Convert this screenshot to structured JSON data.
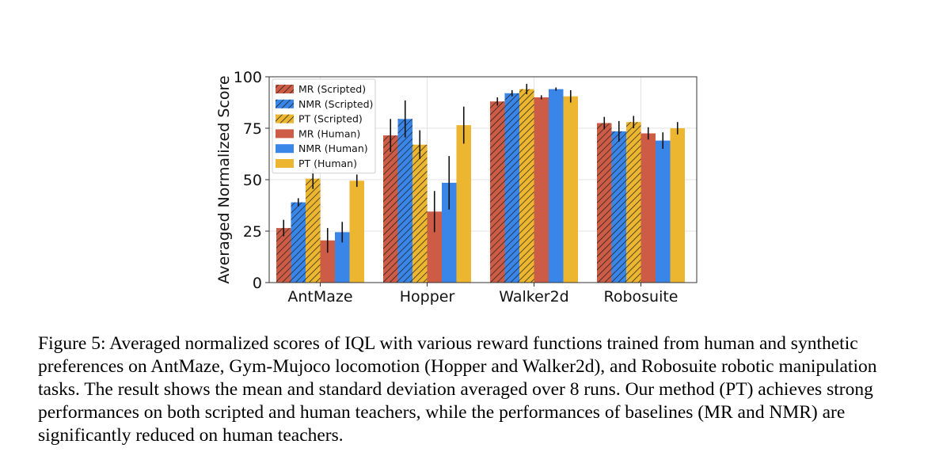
{
  "chart_data": {
    "type": "bar",
    "ylabel": "Averaged Normalized Score",
    "xlabel": "",
    "ylim": [
      0,
      100
    ],
    "yticks": [
      0,
      25,
      50,
      75,
      100
    ],
    "grid": true,
    "legend_position": "top-left",
    "categories": [
      "AntMaze",
      "Hopper",
      "Walker2d",
      "Robosuite"
    ],
    "series": [
      {
        "name": "MR (Scripted)",
        "color": "#cc5c45",
        "hatched": true,
        "values": [
          26.5,
          71.5,
          88,
          77.5
        ],
        "errors": [
          4,
          8,
          2,
          3
        ]
      },
      {
        "name": "NMR (Scripted)",
        "color": "#3a86e8",
        "hatched": true,
        "values": [
          39,
          79.5,
          92,
          73.5
        ],
        "errors": [
          2,
          9,
          1.5,
          5
        ]
      },
      {
        "name": "PT (Scripted)",
        "color": "#ecb630",
        "hatched": true,
        "values": [
          50.5,
          67,
          94,
          78
        ],
        "errors": [
          5,
          7,
          2.5,
          3
        ]
      },
      {
        "name": "MR (Human)",
        "color": "#cc5c45",
        "hatched": false,
        "values": [
          20.5,
          34.5,
          90,
          72.5
        ],
        "errors": [
          6,
          10,
          1,
          3
        ]
      },
      {
        "name": "NMR (Human)",
        "color": "#3a86e8",
        "hatched": false,
        "values": [
          24.5,
          48.5,
          94,
          69
        ],
        "errors": [
          5,
          13,
          0.8,
          4
        ]
      },
      {
        "name": "PT (Human)",
        "color": "#ecb630",
        "hatched": false,
        "values": [
          49.5,
          76.5,
          90.5,
          75
        ],
        "errors": [
          3,
          9,
          3,
          3
        ]
      }
    ]
  },
  "caption": "Figure 5: Averaged normalized scores of IQL with various reward functions trained from human and synthetic preferences on AntMaze, Gym-Mujoco locomotion (Hopper and Walker2d), and Robosuite robotic manipulation tasks. The result shows the mean and standard deviation averaged over 8 runs. Our method (PT) achieves strong performances on both scripted and human teachers, while the performances of baselines (MR and NMR) are significantly reduced on human teachers."
}
